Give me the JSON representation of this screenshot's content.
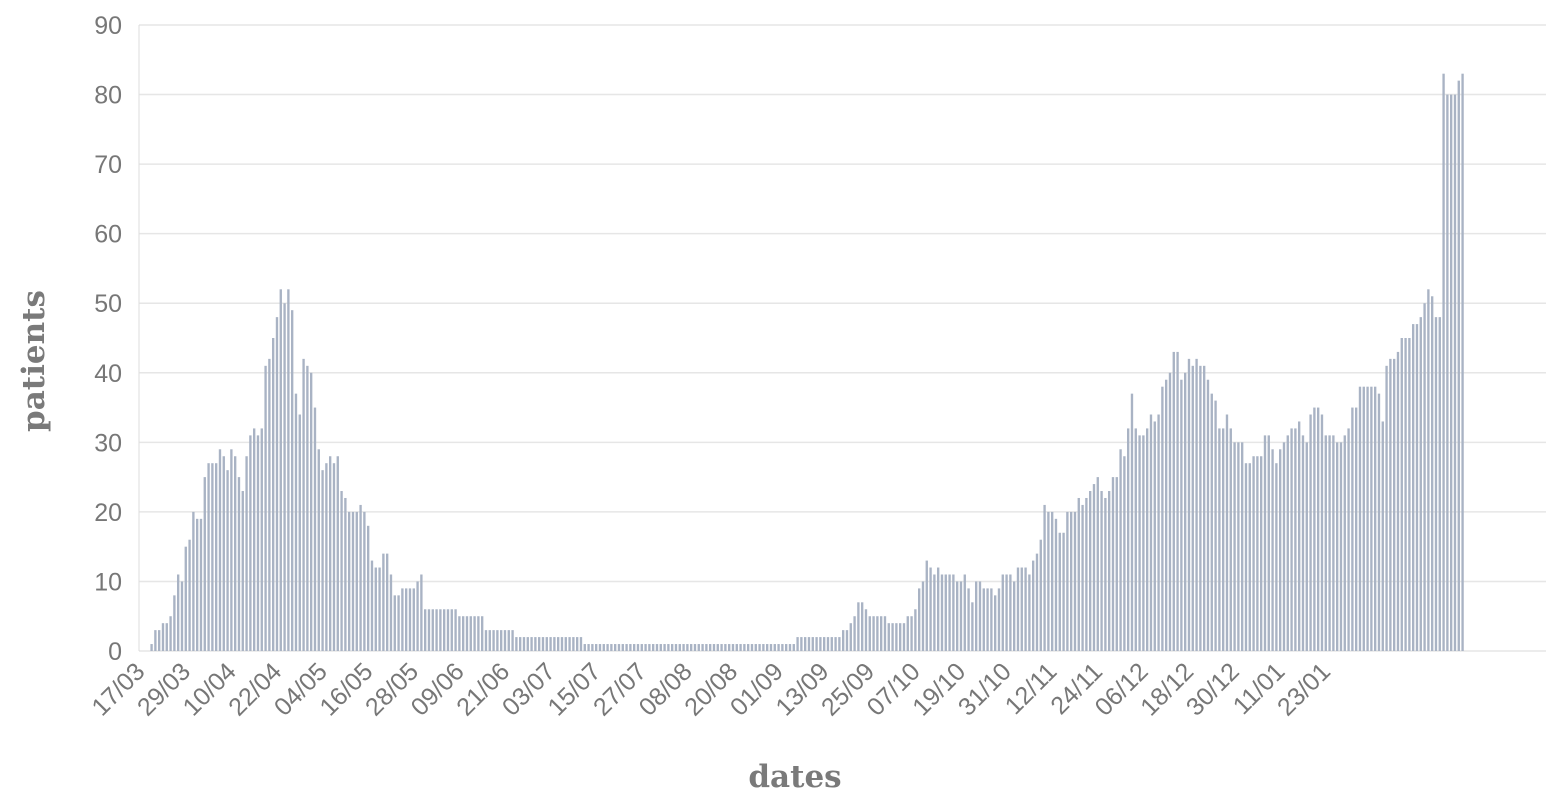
{
  "chart_data": {
    "type": "bar",
    "title": "",
    "xlabel": "dates",
    "ylabel": "patients",
    "ylim": [
      0,
      90
    ],
    "yticks": [
      0,
      10,
      20,
      30,
      40,
      50,
      60,
      70,
      80,
      90
    ],
    "grid": "horizontal",
    "legend": "none",
    "start_date": "17/03",
    "xtick_labels": [
      "17/03",
      "29/03",
      "10/04",
      "22/04",
      "04/05",
      "16/05",
      "28/05",
      "09/06",
      "21/06",
      "03/07",
      "15/07",
      "27/07",
      "08/08",
      "20/08",
      "01/09",
      "13/09",
      "25/09",
      "07/10",
      "19/10",
      "31/10",
      "12/11",
      "24/11",
      "06/12",
      "18/12",
      "30/12",
      "11/01",
      "23/01"
    ],
    "values": [
      0,
      0,
      0,
      1,
      3,
      3,
      4,
      4,
      5,
      8,
      11,
      10,
      15,
      16,
      20,
      19,
      19,
      25,
      27,
      27,
      27,
      29,
      28,
      26,
      29,
      28,
      25,
      23,
      28,
      31,
      32,
      31,
      32,
      41,
      42,
      45,
      48,
      52,
      50,
      52,
      49,
      37,
      34,
      42,
      41,
      40,
      35,
      29,
      26,
      27,
      28,
      27,
      28,
      23,
      22,
      20,
      20,
      20,
      21,
      20,
      18,
      13,
      12,
      12,
      14,
      14,
      11,
      8,
      8,
      9,
      9,
      9,
      9,
      10,
      11,
      6,
      6,
      6,
      6,
      6,
      6,
      6,
      6,
      6,
      5,
      5,
      5,
      5,
      5,
      5,
      5,
      3,
      3,
      3,
      3,
      3,
      3,
      3,
      3,
      2,
      2,
      2,
      2,
      2,
      2,
      2,
      2,
      2,
      2,
      2,
      2,
      2,
      2,
      2,
      2,
      2,
      2,
      1,
      1,
      1,
      1,
      1,
      1,
      1,
      1,
      1,
      1,
      1,
      1,
      1,
      1,
      1,
      1,
      1,
      1,
      1,
      1,
      1,
      1,
      1,
      1,
      1,
      1,
      1,
      1,
      1,
      1,
      1,
      1,
      1,
      1,
      1,
      1,
      1,
      1,
      1,
      1,
      1,
      1,
      1,
      1,
      1,
      1,
      1,
      1,
      1,
      1,
      1,
      1,
      1,
      1,
      1,
      1,
      2,
      2,
      2,
      2,
      2,
      2,
      2,
      2,
      2,
      2,
      2,
      2,
      3,
      3,
      4,
      5,
      7,
      7,
      6,
      5,
      5,
      5,
      5,
      5,
      4,
      4,
      4,
      4,
      4,
      5,
      5,
      6,
      9,
      10,
      13,
      12,
      11,
      12,
      11,
      11,
      11,
      11,
      10,
      10,
      11,
      9,
      7,
      10,
      10,
      9,
      9,
      9,
      8,
      9,
      11,
      11,
      11,
      10,
      12,
      12,
      12,
      11,
      13,
      14,
      16,
      21,
      20,
      20,
      19,
      17,
      17,
      20,
      20,
      20,
      22,
      21,
      22,
      23,
      24,
      25,
      23,
      22,
      23,
      25,
      25,
      29,
      28,
      32,
      37,
      32,
      31,
      31,
      32,
      34,
      33,
      34,
      38,
      39,
      40,
      43,
      43,
      39,
      40,
      42,
      41,
      42,
      41,
      41,
      39,
      37,
      36,
      32,
      32,
      34,
      32,
      30,
      30,
      30,
      27,
      27,
      28,
      28,
      28,
      31,
      31,
      29,
      27,
      29,
      30,
      31,
      32,
      32,
      33,
      31,
      30,
      34,
      35,
      35,
      34,
      31,
      31,
      31,
      30,
      30,
      31,
      32,
      35,
      35,
      38,
      38,
      38,
      38,
      38,
      37,
      33,
      41,
      42,
      42,
      43,
      45,
      45,
      45,
      47,
      47,
      48,
      50,
      52,
      51,
      48,
      48,
      83,
      80,
      80,
      80,
      82,
      83
    ]
  }
}
